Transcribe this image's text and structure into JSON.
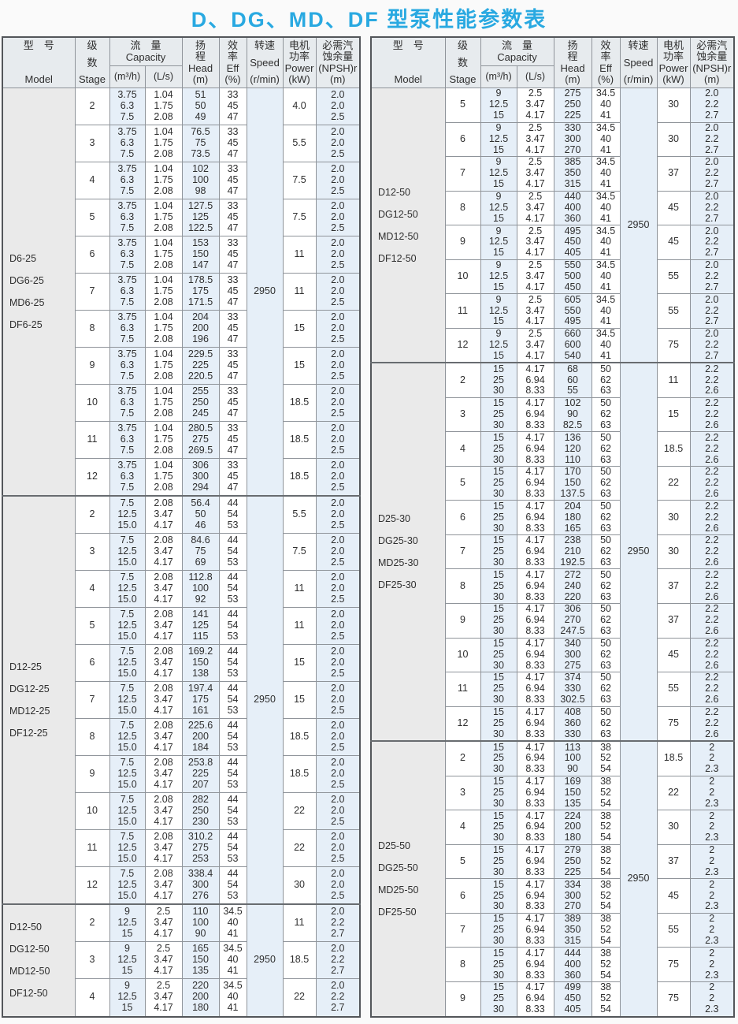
{
  "title": "D、DG、MD、DF 型泵性能参数表",
  "accent_color": "#29a9e1",
  "colors": {
    "title": "#29a9e1",
    "header_bg": "#e7ebee",
    "shaded_cell_bg": "#e6eff8",
    "model_cell_bg": "#eaeaea",
    "border": "#8f949a"
  },
  "header": {
    "model": [
      "型　号",
      "Model"
    ],
    "stage": [
      "级",
      "数",
      "Stage"
    ],
    "capacity": [
      "流　量",
      "Capacity"
    ],
    "capacity_units": [
      "(m³/h)",
      "(L/s)"
    ],
    "head": [
      "扬",
      "程",
      "Head",
      "(m)"
    ],
    "eff": [
      "效",
      "率",
      "Eff",
      "(%)"
    ],
    "speed": [
      "转速",
      "Speed",
      "(r/min)"
    ],
    "power": [
      "电机",
      "功率",
      "Power",
      "(kW)"
    ],
    "npsh": [
      "必需汽",
      "蚀余量",
      "(NPSH)r",
      "(m)"
    ]
  },
  "tables": [
    {
      "name": "left",
      "blocks": [
        {
          "models": [
            "D6-25",
            "DG6-25",
            "MD6-25",
            "DF6-25"
          ],
          "speed": "2950",
          "m3h": [
            "3.75",
            "6.3",
            "7.5"
          ],
          "ls": [
            "1.04",
            "1.75",
            "2.08"
          ],
          "eff": [
            "33",
            "45",
            "47"
          ],
          "npsh": [
            "2.0",
            "2.0",
            "2.5"
          ],
          "rows": [
            {
              "stage": "2",
              "head": [
                "51",
                "50",
                "49"
              ],
              "power": "4.0"
            },
            {
              "stage": "3",
              "head": [
                "76.5",
                "75",
                "73.5"
              ],
              "power": "5.5"
            },
            {
              "stage": "4",
              "head": [
                "102",
                "100",
                "98"
              ],
              "power": "7.5"
            },
            {
              "stage": "5",
              "head": [
                "127.5",
                "125",
                "122.5"
              ],
              "power": "7.5"
            },
            {
              "stage": "6",
              "head": [
                "153",
                "150",
                "147"
              ],
              "power": "11"
            },
            {
              "stage": "7",
              "head": [
                "178.5",
                "175",
                "171.5"
              ],
              "power": "11"
            },
            {
              "stage": "8",
              "head": [
                "204",
                "200",
                "196"
              ],
              "power": "15"
            },
            {
              "stage": "9",
              "head": [
                "229.5",
                "225",
                "220.5"
              ],
              "power": "15"
            },
            {
              "stage": "10",
              "head": [
                "255",
                "250",
                "245"
              ],
              "power": "18.5"
            },
            {
              "stage": "11",
              "head": [
                "280.5",
                "275",
                "269.5"
              ],
              "power": "18.5"
            },
            {
              "stage": "12",
              "head": [
                "306",
                "300",
                "294"
              ],
              "power": "18.5"
            }
          ]
        },
        {
          "models": [
            "D12-25",
            "DG12-25",
            "MD12-25",
            "DF12-25"
          ],
          "speed": "2950",
          "m3h": [
            "7.5",
            "12.5",
            "15.0"
          ],
          "ls": [
            "2.08",
            "3.47",
            "4.17"
          ],
          "eff": [
            "44",
            "54",
            "53"
          ],
          "npsh": [
            "2.0",
            "2.0",
            "2.5"
          ],
          "rows": [
            {
              "stage": "2",
              "head": [
                "56.4",
                "50",
                "46"
              ],
              "power": "5.5"
            },
            {
              "stage": "3",
              "head": [
                "84.6",
                "75",
                "69"
              ],
              "power": "7.5"
            },
            {
              "stage": "4",
              "head": [
                "112.8",
                "100",
                "92"
              ],
              "power": "11"
            },
            {
              "stage": "5",
              "head": [
                "141",
                "125",
                "115"
              ],
              "power": "11"
            },
            {
              "stage": "6",
              "head": [
                "169.2",
                "150",
                "138"
              ],
              "power": "15"
            },
            {
              "stage": "7",
              "head": [
                "197.4",
                "175",
                "161"
              ],
              "power": "15"
            },
            {
              "stage": "8",
              "head": [
                "225.6",
                "200",
                "184"
              ],
              "power": "18.5"
            },
            {
              "stage": "9",
              "head": [
                "253.8",
                "225",
                "207"
              ],
              "power": "18.5"
            },
            {
              "stage": "10",
              "head": [
                "282",
                "250",
                "230"
              ],
              "power": "22"
            },
            {
              "stage": "11",
              "head": [
                "310.2",
                "275",
                "253"
              ],
              "power": "22"
            },
            {
              "stage": "12",
              "head": [
                "338.4",
                "300",
                "276"
              ],
              "power": "30"
            }
          ]
        },
        {
          "models": [
            "D12-50",
            "DG12-50",
            "MD12-50",
            "DF12-50"
          ],
          "speed": "2950",
          "m3h": [
            "9",
            "12.5",
            "15"
          ],
          "ls": [
            "2.5",
            "3.47",
            "4.17"
          ],
          "eff": [
            "34.5",
            "40",
            "41"
          ],
          "npsh": [
            "2.0",
            "2.2",
            "2.7"
          ],
          "rows": [
            {
              "stage": "2",
              "head": [
                "110",
                "100",
                "90"
              ],
              "power": "11"
            },
            {
              "stage": "3",
              "head": [
                "165",
                "150",
                "135"
              ],
              "power": "18.5"
            },
            {
              "stage": "4",
              "head": [
                "220",
                "200",
                "180"
              ],
              "power": "22"
            }
          ]
        }
      ]
    },
    {
      "name": "right",
      "blocks": [
        {
          "models": [
            "D12-50",
            "DG12-50",
            "MD12-50",
            "DF12-50"
          ],
          "speed": "2950",
          "m3h": [
            "9",
            "12.5",
            "15"
          ],
          "ls": [
            "2.5",
            "3.47",
            "4.17"
          ],
          "eff": [
            "34.5",
            "40",
            "41"
          ],
          "npsh": [
            "2.0",
            "2.2",
            "2.7"
          ],
          "rows": [
            {
              "stage": "5",
              "head": [
                "275",
                "250",
                "225"
              ],
              "power": "30"
            },
            {
              "stage": "6",
              "head": [
                "330",
                "300",
                "270"
              ],
              "power": "30"
            },
            {
              "stage": "7",
              "head": [
                "385",
                "350",
                "315"
              ],
              "power": "37"
            },
            {
              "stage": "8",
              "head": [
                "440",
                "400",
                "360"
              ],
              "power": "45"
            },
            {
              "stage": "9",
              "head": [
                "495",
                "450",
                "405"
              ],
              "power": "45"
            },
            {
              "stage": "10",
              "head": [
                "550",
                "500",
                "450"
              ],
              "power": "55"
            },
            {
              "stage": "11",
              "head": [
                "605",
                "550",
                "495"
              ],
              "power": "55"
            },
            {
              "stage": "12",
              "head": [
                "660",
                "600",
                "540"
              ],
              "power": "75"
            }
          ]
        },
        {
          "models": [
            "D25-30",
            "DG25-30",
            "MD25-30",
            "DF25-30"
          ],
          "speed": "2950",
          "m3h": [
            "15",
            "25",
            "30"
          ],
          "ls": [
            "4.17",
            "6.94",
            "8.33"
          ],
          "eff": [
            "50",
            "62",
            "63"
          ],
          "npsh": [
            "2.2",
            "2.2",
            "2.6"
          ],
          "rows": [
            {
              "stage": "2",
              "head": [
                "68",
                "60",
                "55"
              ],
              "power": "11"
            },
            {
              "stage": "3",
              "head": [
                "102",
                "90",
                "82.5"
              ],
              "power": "15"
            },
            {
              "stage": "4",
              "head": [
                "136",
                "120",
                "110"
              ],
              "power": "18.5"
            },
            {
              "stage": "5",
              "head": [
                "170",
                "150",
                "137.5"
              ],
              "power": "22"
            },
            {
              "stage": "6",
              "head": [
                "204",
                "180",
                "165"
              ],
              "power": "30"
            },
            {
              "stage": "7",
              "head": [
                "238",
                "210",
                "192.5"
              ],
              "power": "30"
            },
            {
              "stage": "8",
              "head": [
                "272",
                "240",
                "220"
              ],
              "power": "37"
            },
            {
              "stage": "9",
              "head": [
                "306",
                "270",
                "247.5"
              ],
              "power": "37"
            },
            {
              "stage": "10",
              "head": [
                "340",
                "300",
                "275"
              ],
              "power": "45"
            },
            {
              "stage": "11",
              "head": [
                "374",
                "330",
                "302.5"
              ],
              "power": "55"
            },
            {
              "stage": "12",
              "head": [
                "408",
                "360",
                "330"
              ],
              "power": "75"
            }
          ]
        },
        {
          "models": [
            "D25-50",
            "DG25-50",
            "MD25-50",
            "DF25-50"
          ],
          "speed": "2950",
          "m3h": [
            "15",
            "25",
            "30"
          ],
          "ls": [
            "4.17",
            "6.94",
            "8.33"
          ],
          "eff": [
            "38",
            "52",
            "54"
          ],
          "npsh": [
            "2",
            "2",
            "2.3"
          ],
          "rows": [
            {
              "stage": "2",
              "head": [
                "113",
                "100",
                "90"
              ],
              "power": "18.5"
            },
            {
              "stage": "3",
              "head": [
                "169",
                "150",
                "135"
              ],
              "power": "22"
            },
            {
              "stage": "4",
              "head": [
                "224",
                "200",
                "180"
              ],
              "power": "30"
            },
            {
              "stage": "5",
              "head": [
                "279",
                "250",
                "225"
              ],
              "power": "37"
            },
            {
              "stage": "6",
              "head": [
                "334",
                "300",
                "270"
              ],
              "power": "45"
            },
            {
              "stage": "7",
              "head": [
                "389",
                "350",
                "315"
              ],
              "power": "55"
            },
            {
              "stage": "8",
              "head": [
                "444",
                "400",
                "360"
              ],
              "power": "75"
            },
            {
              "stage": "9",
              "head": [
                "499",
                "450",
                "405"
              ],
              "power": "75"
            }
          ]
        }
      ]
    }
  ]
}
